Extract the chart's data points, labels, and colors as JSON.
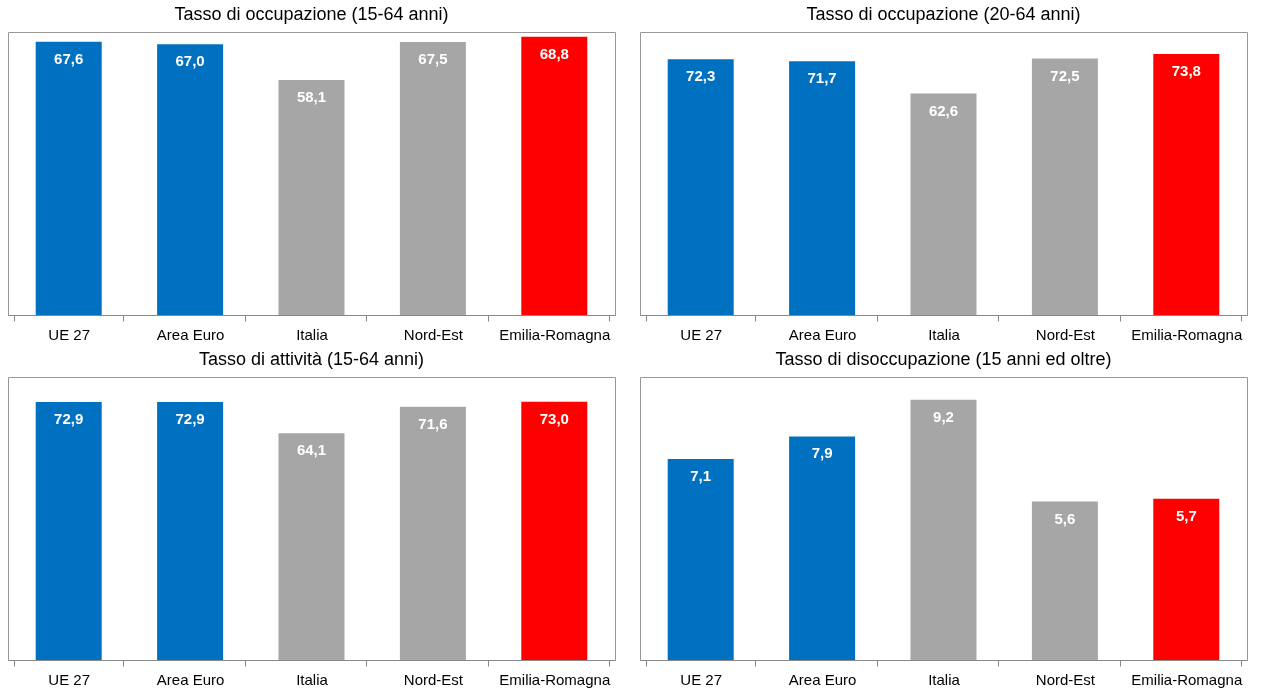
{
  "chart_data": [
    {
      "type": "bar",
      "title": "Tasso di occupazione (15-64 anni)",
      "categories": [
        "UE 27",
        "Area Euro",
        "Italia",
        "Nord-Est",
        "Emilia-Romagna"
      ],
      "values": [
        67.6,
        67.0,
        58.1,
        67.5,
        68.8
      ],
      "colors": [
        "#0070c0",
        "#0070c0",
        "#a6a6a6",
        "#a6a6a6",
        "#ff0000"
      ],
      "value_labels": [
        "67,6",
        "67,0",
        "58,1",
        "67,5",
        "68,8"
      ],
      "grid": false,
      "legend": false
    },
    {
      "type": "bar",
      "title": "Tasso di occupazione (20-64 anni)",
      "categories": [
        "UE 27",
        "Area Euro",
        "Italia",
        "Nord-Est",
        "Emilia-Romagna"
      ],
      "values": [
        72.3,
        71.7,
        62.6,
        72.5,
        73.8
      ],
      "colors": [
        "#0070c0",
        "#0070c0",
        "#a6a6a6",
        "#a6a6a6",
        "#ff0000"
      ],
      "value_labels": [
        "72,3",
        "71,7",
        "62,6",
        "72,5",
        "73,8"
      ],
      "grid": false,
      "legend": false
    },
    {
      "type": "bar",
      "title": "Tasso di attività (15-64 anni)",
      "categories": [
        "UE 27",
        "Area Euro",
        "Italia",
        "Nord-Est",
        "Emilia-Romagna"
      ],
      "values": [
        72.9,
        72.9,
        64.1,
        71.6,
        73.0
      ],
      "colors": [
        "#0070c0",
        "#0070c0",
        "#a6a6a6",
        "#a6a6a6",
        "#ff0000"
      ],
      "value_labels": [
        "72,9",
        "72,9",
        "64,1",
        "71,6",
        "73,0"
      ],
      "grid": false,
      "legend": false
    },
    {
      "type": "bar",
      "title": "Tasso di disoccupazione (15 anni ed oltre)",
      "categories": [
        "UE 27",
        "Area Euro",
        "Italia",
        "Nord-Est",
        "Emilia-Romagna"
      ],
      "values": [
        7.1,
        7.9,
        9.2,
        5.6,
        5.7
      ],
      "colors": [
        "#0070c0",
        "#0070c0",
        "#a6a6a6",
        "#a6a6a6",
        "#ff0000"
      ],
      "value_labels": [
        "7,1",
        "7,9",
        "9,2",
        "5,6",
        "5,7"
      ],
      "grid": false,
      "legend": false
    }
  ]
}
